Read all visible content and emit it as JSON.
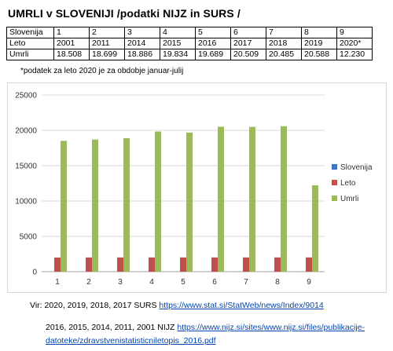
{
  "title": "UMRLI v SLOVENIJI /podatki NIJZ in SURS /",
  "table": {
    "rows": [
      {
        "label": "Slovenija",
        "cells": [
          "1",
          "2",
          "3",
          "4",
          "5",
          "6",
          "7",
          "8",
          "9"
        ]
      },
      {
        "label": "Leto",
        "cells": [
          "2001",
          "2011",
          "2014",
          "2015",
          "2016",
          "2017",
          "2018",
          "2019",
          "2020*"
        ]
      },
      {
        "label": "Umrli",
        "cells": [
          "18.508",
          "18.699",
          "18.886",
          "19.834",
          "19.689",
          "20.509",
          "20.485",
          "20.588",
          "12.230"
        ]
      }
    ]
  },
  "footnote": "*podatek za leto 2020 je za obdobje januar-julij",
  "chart_data": {
    "type": "bar",
    "categories": [
      "1",
      "2",
      "3",
      "4",
      "5",
      "6",
      "7",
      "8",
      "9"
    ],
    "series": [
      {
        "name": "Slovenija",
        "color": "#4472c4",
        "values": [
          1,
          2,
          3,
          4,
          5,
          6,
          7,
          8,
          9
        ]
      },
      {
        "name": "Leto",
        "color": "#c0504d",
        "values": [
          2001,
          2011,
          2014,
          2015,
          2016,
          2017,
          2018,
          2019,
          2020
        ]
      },
      {
        "name": "Umrli",
        "color": "#9bbb59",
        "values": [
          18508,
          18699,
          18886,
          19834,
          19689,
          20509,
          20485,
          20588,
          12230
        ]
      }
    ],
    "ylim": [
      0,
      25000
    ],
    "yticks": [
      "0",
      "5000",
      "10000",
      "15000",
      "20000",
      "25000"
    ],
    "grid": true,
    "legend": "right"
  },
  "sources": {
    "line1_text": "Vir: 2020, 2019, 2018, 2017 SURS ",
    "line1_link": "https://www.stat.si/StatWeb/news/Index/9014",
    "line2_text": "2016, 2015, 2014, 2011, 2001 NIJZ ",
    "line2_link": "https://www.nijz.si/sites/www.nijz.si/files/publikacije-",
    "line3_link": "datoteke/zdravstvenistatisticniletopis_2016.pdf"
  }
}
